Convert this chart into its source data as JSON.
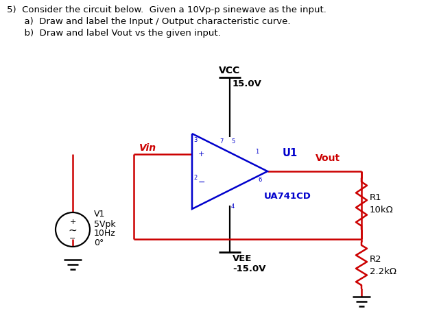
{
  "title_line1": "5)  Consider the circuit below.  Given a 10Vp-p sinewave as the input.",
  "title_line2": "      a)  Draw and label the Input / Output characteristic curve.",
  "title_line3": "      b)  Draw and label Vout vs the given input.",
  "bg_color": "#ffffff",
  "text_color": "#000000",
  "red_color": "#cc0000",
  "blue_color": "#0000cc",
  "vcc_label": "VCC",
  "vcc_value": "15.0V",
  "vee_label": "VEE",
  "vee_value": "-15.0V",
  "u1_label": "U1",
  "ic_label": "UA741CD",
  "vin_label": "Vin",
  "vout_label": "Vout",
  "r1_label": "R1",
  "r1_value": "10kΩ",
  "r2_label": "R2",
  "r2_value": "2.2kΩ",
  "v1_label": "V1",
  "v1_line1": "5Vpk",
  "v1_line2": "10Hz",
  "v1_line3": "0°",
  "pin3": "3",
  "pin2": "2",
  "pin7": "7",
  "pin5": "5",
  "pin1": "1",
  "pin4": "4",
  "pin6": "6"
}
